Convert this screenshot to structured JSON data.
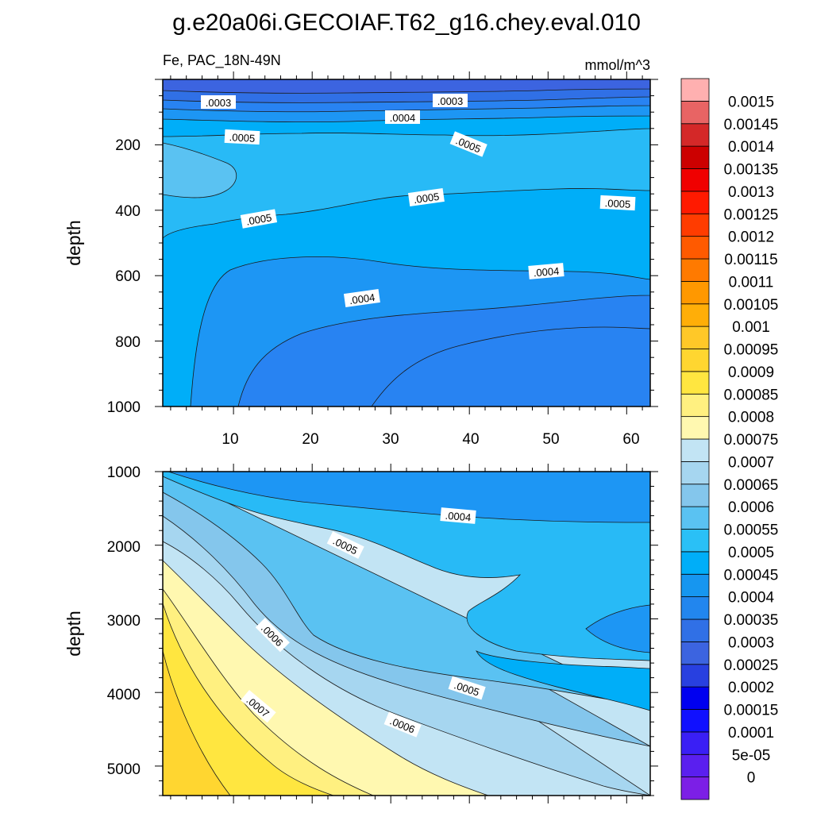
{
  "chart_data": {
    "type": "contour",
    "title": "g.e20a06i.GECOIAF.T62_g16.chey.eval.010",
    "subtitle_left": "Fe, PAC_18N-49N",
    "subtitle_right": "mmol/m^3",
    "ylabel": "depth",
    "x_ticks": [
      "10",
      "20",
      "30",
      "40",
      "50",
      "60"
    ],
    "x_range": [
      1,
      63
    ],
    "panels": [
      {
        "name": "upper",
        "y_range": [
          0,
          1000
        ],
        "y_ticks": [
          "200",
          "400",
          "600",
          "800",
          "1000"
        ],
        "contour_labels": [
          ".0003",
          ".0003",
          ".0004",
          ".0005",
          ".0005",
          ".0005",
          ".0005",
          ".0005",
          ".0004",
          ".0004"
        ]
      },
      {
        "name": "lower",
        "y_range": [
          1000,
          5400
        ],
        "y_ticks": [
          "1000",
          "2000",
          "3000",
          "4000",
          "5000"
        ],
        "contour_labels": [
          ".0004",
          ".0005",
          ".0006",
          ".0005",
          ".0007",
          ".0006"
        ]
      }
    ],
    "colorbar": {
      "labels": [
        "0.0015",
        "0.00145",
        "0.0014",
        "0.00135",
        "0.0013",
        "0.00125",
        "0.0012",
        "0.00115",
        "0.0011",
        "0.00105",
        "0.001",
        "0.00095",
        "0.0009",
        "0.00085",
        "0.0008",
        "0.00075",
        "0.0007",
        "0.00065",
        "0.0006",
        "0.00055",
        "0.0005",
        "0.00045",
        "0.0004",
        "0.00035",
        "0.0003",
        "0.00025",
        "0.0002",
        "0.00015",
        "0.0001",
        "5e-05",
        "0"
      ],
      "colors": [
        "#7c1fe6",
        "#5a1fef",
        "#3a1ff5",
        "#1010ff",
        "#0000f0",
        "#2840e0",
        "#3c64e0",
        "#3070e6",
        "#2286ee",
        "#1696f0",
        "#00aef8",
        "#2ac0f6",
        "#5ac2f2",
        "#84c6ec",
        "#a6d6f0",
        "#c2e4f4",
        "#fff8b0",
        "#fff080",
        "#ffe640",
        "#ffd630",
        "#ffc828",
        "#ffae08",
        "#ff9800",
        "#ff7a00",
        "#ff5a00",
        "#ff3c00",
        "#ff1a00",
        "#f00000",
        "#cc0000",
        "#d42828",
        "#e86464",
        "#ffb0b0"
      ]
    }
  }
}
